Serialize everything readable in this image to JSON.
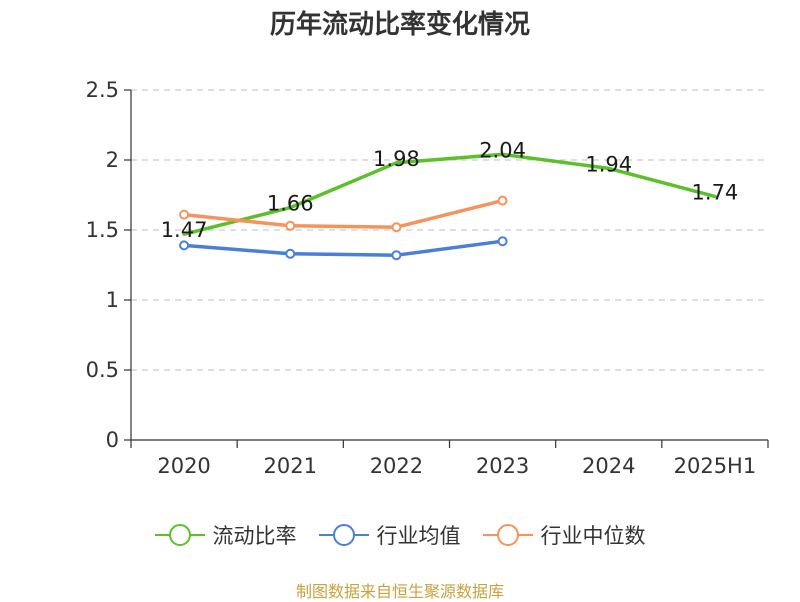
{
  "chart_data": {
    "type": "line",
    "title": "历年流动比率变化情况",
    "categories": [
      "2020",
      "2021",
      "2022",
      "2023",
      "2024",
      "2025H1"
    ],
    "ylim": [
      0,
      2.5
    ],
    "yticks": [
      "0",
      "0.5",
      "1",
      "1.5",
      "2",
      "2.5"
    ],
    "grid": true,
    "legend_position": "bottom",
    "series": [
      {
        "name": "流动比率",
        "color": "#5cc02a",
        "values": [
          1.47,
          1.66,
          1.98,
          2.04,
          1.94,
          1.74
        ],
        "labels": [
          "1.47",
          "1.66",
          "1.98",
          "2.04",
          "1.94",
          "1.74"
        ],
        "markers": false
      },
      {
        "name": "行业均值",
        "color": "#4a7fd8",
        "values": [
          1.39,
          1.33,
          1.32,
          1.42,
          null,
          null
        ],
        "markers": true
      },
      {
        "name": "行业中位数",
        "color": "#f5935a",
        "values": [
          1.61,
          1.53,
          1.52,
          1.71,
          null,
          null
        ],
        "markers": true
      }
    ]
  },
  "source": "制图数据来自恒生聚源数据库"
}
